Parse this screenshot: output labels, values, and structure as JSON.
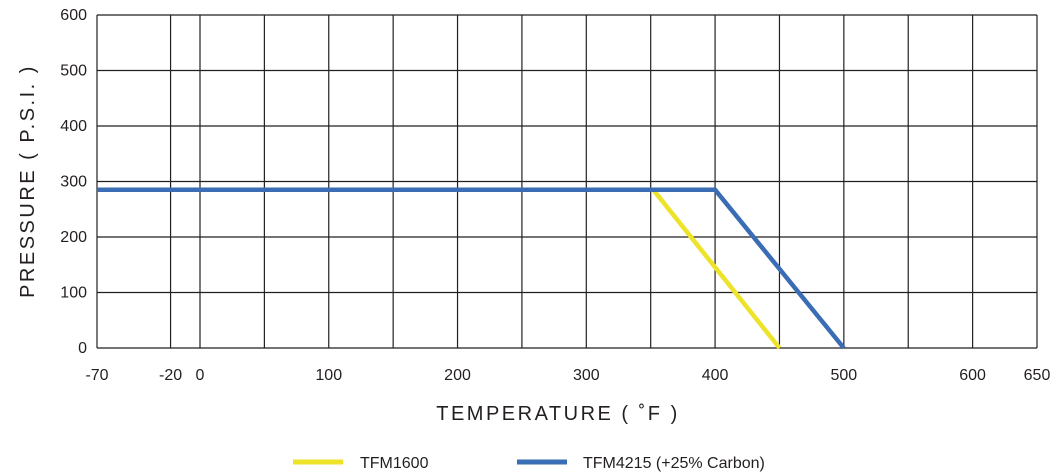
{
  "chart_data": {
    "type": "line",
    "title": "",
    "xlabel": "TEMPERATURE ( ˚F )",
    "ylabel": "PRESSURE ( P.S.I. )",
    "xlim": [
      -70,
      650
    ],
    "ylim": [
      0,
      600
    ],
    "x_ticks": [
      {
        "value": -70,
        "label": "-70"
      },
      {
        "value": -20,
        "label": "-20"
      },
      {
        "value": 0,
        "label": "0"
      },
      {
        "value": 100,
        "label": "100"
      },
      {
        "value": 200,
        "label": "200"
      },
      {
        "value": 300,
        "label": "300"
      },
      {
        "value": 400,
        "label": "400"
      },
      {
        "value": 500,
        "label": "500"
      },
      {
        "value": 600,
        "label": "600"
      },
      {
        "value": 650,
        "label": "650"
      }
    ],
    "x_gridlines": [
      -70,
      -20,
      0,
      50,
      100,
      150,
      200,
      250,
      300,
      350,
      400,
      450,
      500,
      550,
      600,
      650
    ],
    "y_ticks": [
      {
        "value": 0,
        "label": "0"
      },
      {
        "value": 100,
        "label": "100"
      },
      {
        "value": 200,
        "label": "200"
      },
      {
        "value": 300,
        "label": "300"
      },
      {
        "value": 400,
        "label": "400"
      },
      {
        "value": 500,
        "label": "500"
      },
      {
        "value": 600,
        "label": "600"
      }
    ],
    "grid": true,
    "legend_position": "bottom",
    "series": [
      {
        "name": "TFM1600",
        "color": "#ede329",
        "points": [
          [
            -70,
            285
          ],
          [
            352,
            285
          ],
          [
            450,
            0
          ]
        ]
      },
      {
        "name": "TFM4215 (+25% Carbon)",
        "color": "#3a6db4",
        "points": [
          [
            -70,
            285
          ],
          [
            400,
            285
          ],
          [
            500,
            0
          ]
        ]
      }
    ]
  }
}
